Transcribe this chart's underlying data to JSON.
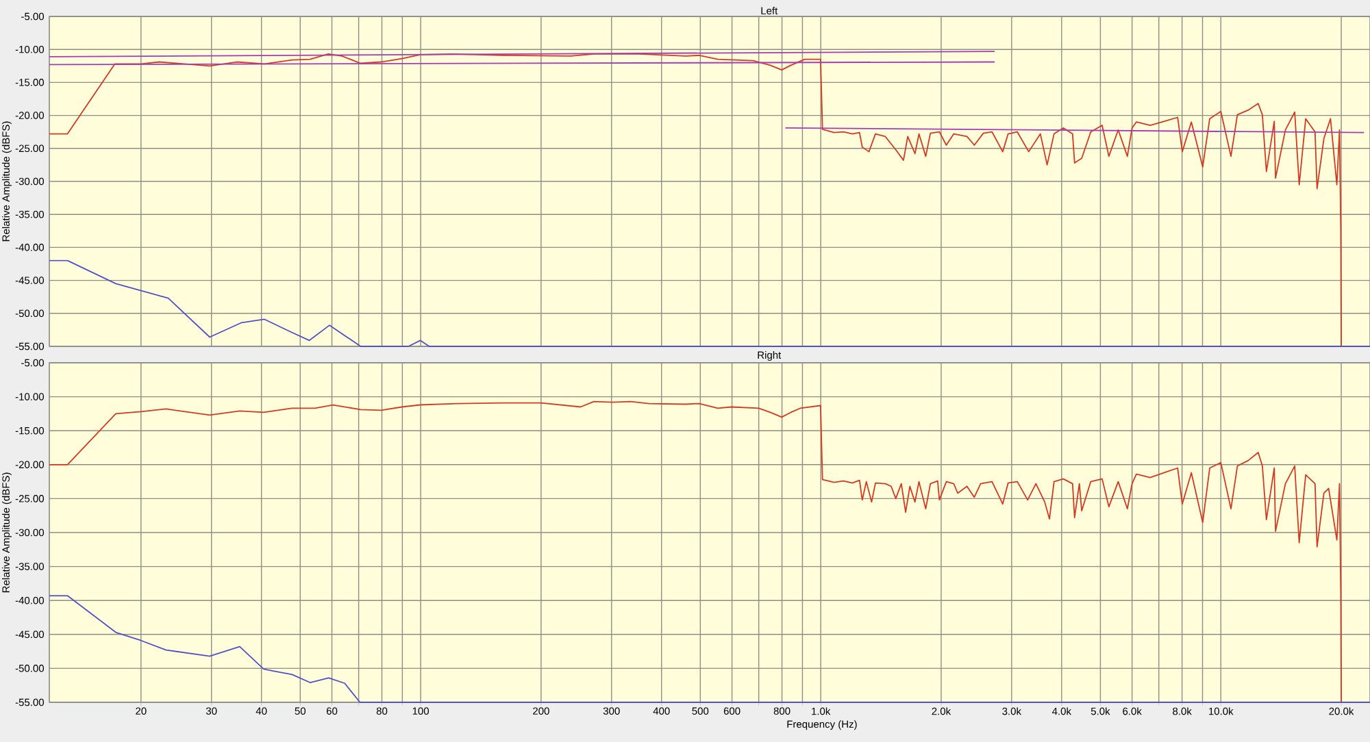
{
  "chart_data": [
    {
      "type": "line",
      "title": "Left",
      "ylabel": "Relative Amplitude (dBFS)",
      "log": "x",
      "grid": true,
      "tick_labels": "y",
      "xlim": [
        11.8,
        23600
      ],
      "ylim": [
        -55,
        -5
      ],
      "xticks": [
        20,
        30,
        40,
        50,
        60,
        70,
        80,
        90,
        100,
        200,
        300,
        400,
        500,
        600,
        700,
        800,
        900,
        1000,
        2000,
        3000,
        4000,
        5000,
        6000,
        7000,
        8000,
        9000,
        10000,
        20000
      ],
      "yticks": [
        {
          "value": -5,
          "label": "-5.00"
        },
        {
          "value": -10,
          "label": "-10.00"
        },
        {
          "value": -15,
          "label": "-15.00"
        },
        {
          "value": -20,
          "label": "-20.00"
        },
        {
          "value": -25,
          "label": "-25.00"
        },
        {
          "value": -30,
          "label": "-30.00"
        },
        {
          "value": -35,
          "label": "-35.00"
        },
        {
          "value": -40,
          "label": "-40.00"
        },
        {
          "value": -45,
          "label": "-45.00"
        },
        {
          "value": -50,
          "label": "-50.00"
        },
        {
          "value": -55,
          "label": "-55.00"
        }
      ],
      "series": [
        {
          "color": "#d43a22",
          "x": [
            11.8,
            13.1,
            17.2,
            20,
            22.2,
            29.7,
            34.7,
            40.7,
            47.7,
            52.9,
            58.8,
            63.6,
            70.6,
            79.7,
            89.8,
            99.8,
            120,
            160,
            237,
            271,
            352,
            460,
            497,
            553,
            678,
            748,
            799,
            842,
            912,
            999,
            1010,
            1080,
            1140,
            1200,
            1250,
            1270,
            1320,
            1370,
            1450,
            1540,
            1610,
            1650,
            1720,
            1760,
            1830,
            1880,
            1980,
            2060,
            2150,
            2320,
            2420,
            2550,
            2680,
            2850,
            2940,
            3100,
            3310,
            3540,
            3680,
            3830,
            4040,
            4260,
            4310,
            4490,
            4730,
            5050,
            5250,
            5540,
            5840,
            6000,
            6150,
            6660,
            7210,
            7800,
            8010,
            8440,
            9010,
            9380,
            10000,
            10600,
            11000,
            11700,
            12400,
            12700,
            13000,
            13600,
            13700,
            14500,
            15300,
            15700,
            16300,
            17200,
            17400,
            18100,
            18800,
            19500,
            19800,
            19950,
            20000
          ],
          "values": [
            -22.8,
            -22.8,
            -12.2,
            -12.2,
            -11.9,
            -12.5,
            -11.9,
            -12.2,
            -11.6,
            -11.5,
            -10.7,
            -11.0,
            -12.1,
            -11.9,
            -11.4,
            -10.8,
            -10.7,
            -10.9,
            -11.0,
            -10.7,
            -10.7,
            -11.0,
            -10.9,
            -11.5,
            -11.7,
            -12.4,
            -13.1,
            -12.4,
            -11.5,
            -11.5,
            -22.1,
            -22.6,
            -22.5,
            -22.8,
            -22.6,
            -24.8,
            -25.5,
            -22.8,
            -23.2,
            -25.2,
            -26.8,
            -23.2,
            -25.8,
            -22.8,
            -26.2,
            -22.7,
            -22.5,
            -24.5,
            -22.8,
            -23.2,
            -24.5,
            -22.7,
            -22.5,
            -25.5,
            -22.8,
            -22.5,
            -25.5,
            -22.8,
            -27.5,
            -22.8,
            -21.9,
            -22.8,
            -27.2,
            -26.5,
            -22.5,
            -21.5,
            -26.2,
            -22.2,
            -26.2,
            -21.9,
            -21.0,
            -21.5,
            -20.9,
            -20.3,
            -25.5,
            -21.0,
            -27.8,
            -20.5,
            -19.4,
            -26.2,
            -19.9,
            -19.2,
            -18.2,
            -19.9,
            -28.5,
            -20.9,
            -29.5,
            -22.2,
            -19.5,
            -30.5,
            -20.5,
            -22.5,
            -31.1,
            -23.5,
            -20.5,
            -30.5,
            -22.2,
            -37.3,
            -55
          ]
        },
        {
          "color": "#5050c8",
          "x": [
            11.8,
            13.1,
            17.3,
            23.4,
            29.7,
            35.7,
            40.7,
            47.7,
            52.7,
            59.2,
            70.8,
            93.2,
            99.8,
            105,
            23600
          ],
          "values": [
            -42,
            -42,
            -45.5,
            -47.7,
            -53.6,
            -51.4,
            -50.9,
            -52.9,
            -54.1,
            -51.8,
            -55,
            -55,
            -54.1,
            -55,
            -55
          ]
        },
        {
          "color": "#a63bb5",
          "x": [
            11.8,
            2720
          ],
          "values": [
            -11.1,
            -10.3
          ]
        },
        {
          "color": "#a63bb5",
          "x": [
            11.8,
            2720
          ],
          "values": [
            -12.3,
            -11.9
          ]
        },
        {
          "color": "#a63bb5",
          "x": [
            816,
            22800
          ],
          "values": [
            -21.9,
            -22.6
          ]
        }
      ]
    },
    {
      "type": "line",
      "title": "Right",
      "xlabel": "Frequency (Hz)",
      "ylabel": "Relative Amplitude (dBFS)",
      "log": "x",
      "grid": true,
      "xlim": [
        11.8,
        23600
      ],
      "ylim": [
        -55,
        -5
      ],
      "xticks": [
        20,
        30,
        40,
        50,
        60,
        {
          "value": 70,
          "label": null
        },
        80,
        {
          "value": 90,
          "label": null
        },
        100,
        200,
        300,
        400,
        500,
        600,
        {
          "value": 700,
          "label": null
        },
        800,
        {
          "value": 900,
          "label": null
        },
        {
          "value": 1000,
          "label": "1.0k"
        },
        {
          "value": 2000,
          "label": "2.0k"
        },
        {
          "value": 3000,
          "label": "3.0k"
        },
        {
          "value": 4000,
          "label": "4.0k"
        },
        {
          "value": 5000,
          "label": "5.0k"
        },
        {
          "value": 6000,
          "label": "6.0k"
        },
        {
          "value": 7000,
          "label": null
        },
        {
          "value": 8000,
          "label": "8.0k"
        },
        {
          "value": 9000,
          "label": null
        },
        {
          "value": 10000,
          "label": "10.0k"
        },
        {
          "value": 20000,
          "label": "20.0k"
        }
      ],
      "yticks": [
        {
          "value": -5,
          "label": "-5.00"
        },
        {
          "value": -10,
          "label": "-10.00"
        },
        {
          "value": -15,
          "label": "-15.00"
        },
        {
          "value": -20,
          "label": "-20.00"
        },
        {
          "value": -25,
          "label": "-25.00"
        },
        {
          "value": -30,
          "label": "-30.00"
        },
        {
          "value": -35,
          "label": "-35.00"
        },
        {
          "value": -40,
          "label": "-40.00"
        },
        {
          "value": -45,
          "label": "-45.00"
        },
        {
          "value": -50,
          "label": "-50.00"
        },
        {
          "value": -55,
          "label": "-55.00"
        }
      ],
      "series": [
        {
          "color": "#d43a22",
          "x": [
            11.8,
            13.1,
            17.3,
            20,
            23.1,
            29.7,
            35.3,
            40.5,
            47.7,
            54.4,
            60.4,
            70.8,
            79.7,
            89.8,
            99.8,
            123,
            160,
            200,
            251,
            271,
            302,
            335,
            372,
            460,
            497,
            553,
            598,
            700,
            748,
            799,
            842,
            888,
            999,
            1010,
            1080,
            1140,
            1200,
            1250,
            1270,
            1300,
            1340,
            1370,
            1450,
            1500,
            1540,
            1590,
            1630,
            1670,
            1720,
            1760,
            1830,
            1880,
            1960,
            1980,
            2060,
            2150,
            2200,
            2320,
            2420,
            2510,
            2680,
            2850,
            2940,
            3100,
            3290,
            3450,
            3630,
            3730,
            3830,
            4040,
            4260,
            4310,
            4430,
            4490,
            4730,
            5050,
            5250,
            5540,
            5840,
            6000,
            6150,
            6660,
            7210,
            7800,
            8010,
            8440,
            9010,
            9380,
            10000,
            10600,
            11000,
            11700,
            12400,
            12700,
            13000,
            13600,
            13700,
            14500,
            15300,
            15700,
            16300,
            17200,
            17400,
            18100,
            18600,
            19500,
            19800,
            19950,
            20000
          ],
          "values": [
            -20.0,
            -20.0,
            -12.5,
            -12.2,
            -11.8,
            -12.7,
            -12.1,
            -12.3,
            -11.7,
            -11.7,
            -11.2,
            -11.9,
            -12.0,
            -11.5,
            -11.2,
            -11.0,
            -10.9,
            -10.9,
            -11.5,
            -10.7,
            -10.8,
            -10.7,
            -11.0,
            -11.1,
            -11.0,
            -11.7,
            -11.5,
            -11.7,
            -12.3,
            -13.0,
            -12.3,
            -11.7,
            -11.3,
            -22.2,
            -22.6,
            -22.4,
            -22.7,
            -22.3,
            -25.2,
            -22.5,
            -25.5,
            -22.7,
            -22.8,
            -23.2,
            -25.0,
            -22.8,
            -27.0,
            -23.2,
            -25.5,
            -22.5,
            -26.5,
            -22.8,
            -22.4,
            -25.2,
            -22.5,
            -22.8,
            -24.2,
            -23.2,
            -24.8,
            -22.8,
            -22.5,
            -25.8,
            -22.7,
            -22.5,
            -25.2,
            -22.8,
            -25.5,
            -28.0,
            -22.5,
            -22.1,
            -22.8,
            -27.8,
            -22.8,
            -26.8,
            -22.5,
            -22.1,
            -26.2,
            -22.5,
            -26.5,
            -22.8,
            -21.4,
            -21.9,
            -21.2,
            -20.5,
            -25.8,
            -21.2,
            -28.5,
            -20.5,
            -19.7,
            -26.5,
            -20.2,
            -19.4,
            -18.2,
            -20.2,
            -28.1,
            -20.5,
            -29.8,
            -22.8,
            -20.2,
            -31.5,
            -21.5,
            -22.8,
            -32.1,
            -24.2,
            -23.5,
            -31.1,
            -22.8,
            -38.6,
            -55
          ]
        },
        {
          "color": "#5050c8",
          "x": [
            11.8,
            13.1,
            17.3,
            20,
            23.1,
            29.7,
            35.3,
            40.5,
            42.9,
            47.7,
            53,
            58.9,
            64.6,
            70.5,
            23600
          ],
          "values": [
            -39.3,
            -39.3,
            -44.7,
            -45.9,
            -47.3,
            -48.2,
            -46.8,
            -50.1,
            -50.4,
            -50.9,
            -52.1,
            -51.4,
            -52.2,
            -55,
            -55
          ]
        }
      ]
    }
  ]
}
